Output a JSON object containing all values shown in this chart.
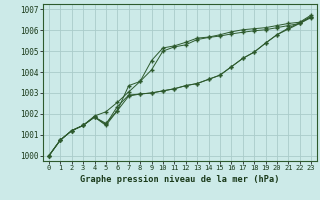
{
  "title": "Graphe pression niveau de la mer (hPa)",
  "bg_color": "#cceae8",
  "grid_color": "#aaccca",
  "line_color": "#2d5a2d",
  "xlim": [
    -0.5,
    23.5
  ],
  "ylim": [
    999.75,
    1007.25
  ],
  "xticks": [
    0,
    1,
    2,
    3,
    4,
    5,
    6,
    7,
    8,
    9,
    10,
    11,
    12,
    13,
    14,
    15,
    16,
    17,
    18,
    19,
    20,
    21,
    22,
    23
  ],
  "yticks": [
    1000,
    1001,
    1002,
    1003,
    1004,
    1005,
    1006,
    1007
  ],
  "series": [
    [
      1000.0,
      1000.75,
      1001.2,
      1001.45,
      1001.9,
      1002.1,
      1002.55,
      1003.05,
      1003.55,
      1004.1,
      1005.0,
      1005.2,
      1005.3,
      1005.55,
      1005.65,
      1005.72,
      1005.82,
      1005.9,
      1005.97,
      1006.02,
      1006.12,
      1006.22,
      1006.32,
      1006.65
    ],
    [
      1000.0,
      1000.75,
      1001.2,
      1001.45,
      1001.85,
      1001.55,
      1002.15,
      1003.35,
      1003.55,
      1004.55,
      1005.15,
      1005.25,
      1005.42,
      1005.62,
      1005.67,
      1005.78,
      1005.92,
      1006.02,
      1006.07,
      1006.12,
      1006.22,
      1006.32,
      1006.38,
      1006.72
    ],
    [
      1000.0,
      1000.75,
      1001.2,
      1001.45,
      1001.85,
      1001.45,
      1002.15,
      1002.85,
      1002.95,
      1003.0,
      1003.1,
      1003.2,
      1003.35,
      1003.45,
      1003.65,
      1003.85,
      1004.25,
      1004.65,
      1004.95,
      1005.38,
      1005.78,
      1006.05,
      1006.32,
      1006.6
    ],
    [
      1000.0,
      1000.75,
      1001.2,
      1001.45,
      1001.85,
      1001.5,
      1002.35,
      1002.9,
      1002.95,
      1003.0,
      1003.1,
      1003.2,
      1003.35,
      1003.45,
      1003.65,
      1003.85,
      1004.25,
      1004.65,
      1004.95,
      1005.38,
      1005.78,
      1006.1,
      1006.35,
      1006.65
    ]
  ]
}
